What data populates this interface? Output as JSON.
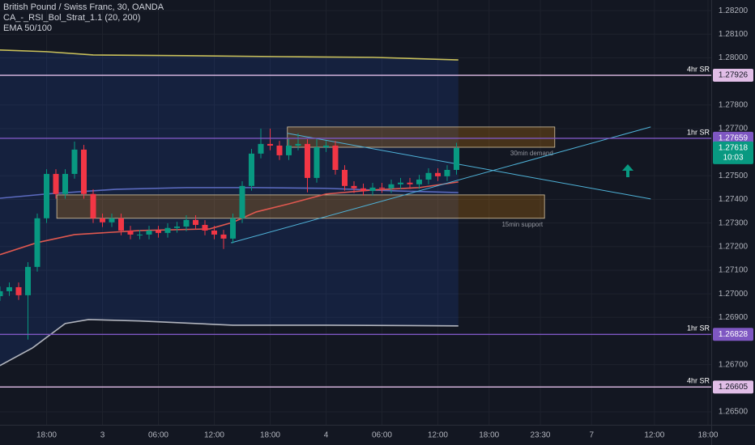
{
  "chart_data": {
    "type": "candlestick",
    "title": "British Pound / Swiss Franc, 30, OANDA",
    "indicators": [
      "CA_-_RSI_Bol_Strat_1.1 (20, 200)",
      "EMA 50/100"
    ],
    "up_color": "#089981",
    "down_color": "#f23645",
    "x": [
      0,
      2,
      4,
      6,
      8,
      10,
      12,
      14,
      16,
      18,
      20,
      22,
      24,
      26,
      28,
      30,
      32,
      34,
      36,
      38,
      40,
      42,
      44,
      46,
      48,
      50,
      52,
      54,
      56,
      58,
      60,
      62,
      64,
      66,
      68,
      70,
      72,
      74,
      76,
      78,
      80,
      82,
      84,
      86,
      88,
      90,
      92,
      94,
      96,
      98
    ],
    "open": [
      1.2699,
      1.27011,
      1.27028,
      1.26994,
      1.27114,
      1.2732,
      1.27508,
      1.27423,
      1.27508,
      1.27611,
      1.27423,
      1.2732,
      1.27303,
      1.2732,
      1.27268,
      1.27251,
      1.27251,
      1.27268,
      1.27258,
      1.27279,
      1.27285,
      1.27313,
      1.27292,
      1.27268,
      1.27251,
      1.27234,
      1.2732,
      1.27457,
      1.27594,
      1.27635,
      1.27628,
      1.27587,
      1.27628,
      1.27635,
      1.27491,
      1.27621,
      1.27628,
      1.27525,
      1.27457,
      1.27447,
      1.27436,
      1.2745,
      1.27447,
      1.27464,
      1.27471,
      1.27464,
      1.27484,
      1.27512,
      1.27498,
      1.27525
    ],
    "high": [
      1.27031,
      1.27048,
      1.27048,
      1.27134,
      1.2734,
      1.27528,
      1.27528,
      1.27528,
      1.27645,
      1.27631,
      1.27443,
      1.2734,
      1.2734,
      1.2734,
      1.27288,
      1.27271,
      1.27288,
      1.27288,
      1.27299,
      1.27305,
      1.27333,
      1.27333,
      1.27312,
      1.27288,
      1.27271,
      1.2734,
      1.27477,
      1.27614,
      1.277,
      1.277,
      1.27648,
      1.2766,
      1.2768,
      1.27655,
      1.2766,
      1.27648,
      1.27648,
      1.27545,
      1.27477,
      1.27467,
      1.2747,
      1.2747,
      1.27484,
      1.27491,
      1.27491,
      1.27504,
      1.27532,
      1.27532,
      1.27545,
      1.2764
    ],
    "low": [
      1.2697,
      1.26991,
      1.26974,
      1.26806,
      1.27094,
      1.273,
      1.27403,
      1.27403,
      1.27488,
      1.27403,
      1.273,
      1.27283,
      1.27283,
      1.27248,
      1.27231,
      1.27231,
      1.27231,
      1.27238,
      1.27238,
      1.27259,
      1.27265,
      1.27272,
      1.27248,
      1.27231,
      1.2719,
      1.27214,
      1.273,
      1.27437,
      1.27574,
      1.27608,
      1.27567,
      1.27567,
      1.27608,
      1.2743,
      1.27471,
      1.27601,
      1.27505,
      1.27437,
      1.27427,
      1.27416,
      1.27416,
      1.27427,
      1.27427,
      1.27444,
      1.27444,
      1.27444,
      1.27464,
      1.27478,
      1.27478,
      1.27505
    ],
    "close": [
      1.27011,
      1.27028,
      1.26994,
      1.27114,
      1.2732,
      1.27508,
      1.27423,
      1.27508,
      1.27611,
      1.27423,
      1.2732,
      1.27303,
      1.2732,
      1.27268,
      1.27251,
      1.27251,
      1.27268,
      1.27258,
      1.27279,
      1.27285,
      1.27313,
      1.27292,
      1.27268,
      1.27251,
      1.27234,
      1.2732,
      1.27457,
      1.27594,
      1.27635,
      1.27628,
      1.27587,
      1.27628,
      1.27635,
      1.27491,
      1.27621,
      1.27628,
      1.27525,
      1.27457,
      1.27447,
      1.27436,
      1.2745,
      1.27447,
      1.27464,
      1.27471,
      1.27464,
      1.27484,
      1.27512,
      1.27498,
      1.27525,
      1.27618
    ],
    "countdown": "10:03",
    "lines": [
      {
        "color": "#c9c05a",
        "x": [
          0,
          10,
          20,
          40,
          60,
          80,
          98.4
        ],
        "values": [
          1.28033,
          1.28026,
          1.28012,
          1.28009,
          1.28005,
          1.28002,
          1.27991
        ]
      },
      {
        "color": "#b2b5be",
        "x": [
          0,
          7,
          14,
          19,
          30,
          50,
          70,
          98.4
        ],
        "values": [
          1.26696,
          1.26771,
          1.26874,
          1.26891,
          1.26885,
          1.26867,
          1.26867,
          1.26864
        ]
      },
      {
        "color": "#5c6bc0",
        "x": [
          0,
          10,
          25,
          40,
          55,
          70,
          85,
          98.4
        ],
        "values": [
          1.27405,
          1.27423,
          1.27443,
          1.2745,
          1.2745,
          1.27447,
          1.27436,
          1.27429
        ]
      },
      {
        "color": "#e0584f",
        "x": [
          0,
          8,
          16,
          30,
          45,
          50,
          55,
          62,
          70,
          80,
          90,
          98.4
        ],
        "values": [
          1.27166,
          1.27217,
          1.27251,
          1.27268,
          1.27275,
          1.27303,
          1.27347,
          1.27381,
          1.27423,
          1.2744,
          1.2745,
          1.27474
        ]
      }
    ],
    "levels": [
      {
        "name": "4hr SR",
        "value": 1.27926,
        "color": "#e1bee7",
        "text_color": "#131722"
      },
      {
        "name": "1hr SR",
        "value": 1.27659,
        "color": "#7e57c2",
        "text_color": "#ffffff"
      },
      {
        "name": "1hr SR",
        "value": 1.26828,
        "color": "#7e57c2",
        "text_color": "#ffffff"
      },
      {
        "name": "4hr SR",
        "value": 1.26605,
        "color": "#e1bee7",
        "text_color": "#131722"
      }
    ],
    "zones": [
      {
        "label": "30min demand",
        "x": [
          61.7,
          119.1
        ],
        "values": [
          1.27621,
          1.27707
        ]
      },
      {
        "label": "15min support",
        "x": [
          12.2,
          116.9
        ],
        "values": [
          1.2732,
          1.27419
        ]
      }
    ],
    "trendlines": [
      {
        "x": [
          49.6,
          139.7
        ],
        "values": [
          1.27216,
          1.27707
        ]
      },
      {
        "x": [
          61.7,
          139.7
        ],
        "values": [
          1.2768,
          1.27402
        ]
      }
    ],
    "xlim": [
      0,
      152.7
    ],
    "ylim": [
      1.26445,
      1.28245
    ],
    "xticks": [
      {
        "value": 10,
        "label": "18:00"
      },
      {
        "value": 22,
        "label": "3"
      },
      {
        "value": 34,
        "label": "06:00"
      },
      {
        "value": 46,
        "label": "12:00"
      },
      {
        "value": 58,
        "label": "18:00"
      },
      {
        "value": 70,
        "label": "4"
      },
      {
        "value": 82,
        "label": "06:00"
      },
      {
        "value": 94,
        "label": "12:00"
      },
      {
        "value": 105,
        "label": "18:00"
      },
      {
        "value": 116,
        "label": "23:30"
      },
      {
        "value": 127,
        "label": "7"
      },
      {
        "value": 140.5,
        "label": "12:00"
      },
      {
        "value": 152,
        "label": "18:00"
      }
    ],
    "yticks": [
      {
        "value": 1.282,
        "label": "1.28200"
      },
      {
        "value": 1.281,
        "label": "1.28100"
      },
      {
        "value": 1.28,
        "label": "1.28000"
      },
      {
        "value": 1.278,
        "label": "1.27800"
      },
      {
        "value": 1.277,
        "label": "1.27700"
      },
      {
        "value": 1.275,
        "label": "1.27500"
      },
      {
        "value": 1.274,
        "label": "1.27400"
      },
      {
        "value": 1.273,
        "label": "1.27300"
      },
      {
        "value": 1.272,
        "label": "1.27200"
      },
      {
        "value": 1.271,
        "label": "1.27100"
      },
      {
        "value": 1.27,
        "label": "1.27000"
      },
      {
        "value": 1.269,
        "label": "1.26900"
      },
      {
        "value": 1.267,
        "label": "1.26700"
      },
      {
        "value": 1.265,
        "label": "1.26500"
      }
    ],
    "grid": true
  }
}
